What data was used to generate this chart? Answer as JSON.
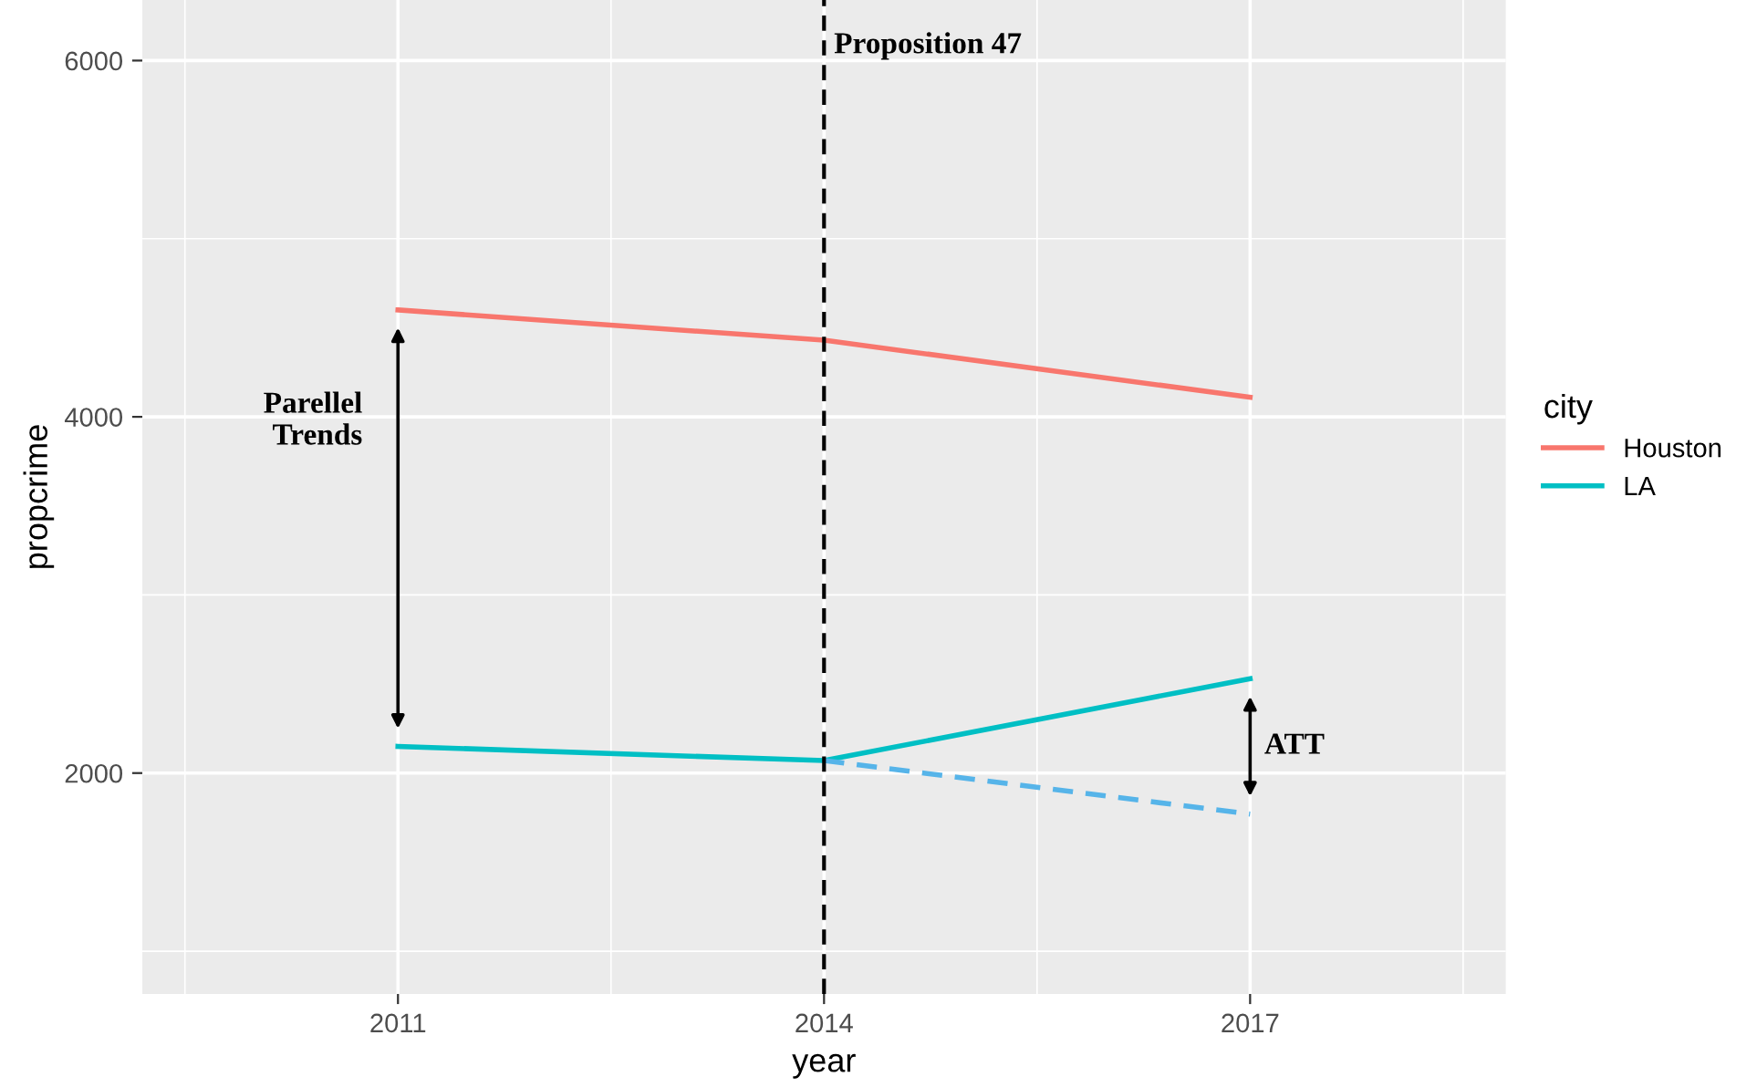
{
  "chart_data": {
    "type": "line",
    "xlabel": "year",
    "ylabel": "propcrime",
    "legend_title": "city",
    "legend": "right",
    "grid": true,
    "xlim": [
      2009.2,
      2018.8
    ],
    "xticks": [
      2011,
      2014,
      2017
    ],
    "ylim": [
      760,
      6340
    ],
    "yticks": [
      2000,
      4000,
      6000
    ],
    "series": [
      {
        "name": "Houston",
        "color": "#f8766d",
        "x": [
          2011,
          2014,
          2017
        ],
        "values": [
          4600,
          4430,
          4110
        ]
      },
      {
        "name": "LA",
        "color": "#00bfc4",
        "x": [
          2011,
          2014,
          2017
        ],
        "values": [
          2150,
          2070,
          2530
        ]
      },
      {
        "color": "#56b4e9",
        "line_style": "dashed",
        "x": [
          2014,
          2017
        ],
        "values": [
          2070,
          1770
        ]
      }
    ],
    "ref_lines": [
      {
        "axis": "x",
        "value": 2014,
        "label": "Proposition 47",
        "color": "#000000",
        "line_style": "dashed"
      }
    ],
    "annotations": [
      "Parellel\nTrends",
      "ATT"
    ]
  }
}
